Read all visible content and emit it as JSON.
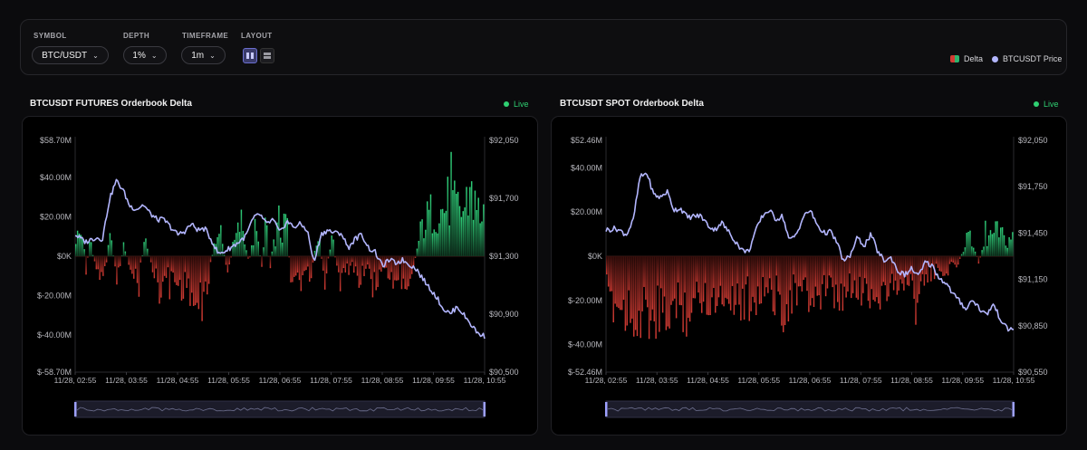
{
  "controls": {
    "symbol": {
      "label": "SYMBOL",
      "value": "BTC/USDT"
    },
    "depth": {
      "label": "DEPTH",
      "value": "1%"
    },
    "timeframe": {
      "label": "TIMEFRAME",
      "value": "1m"
    },
    "layout": {
      "label": "LAYOUT",
      "selected": "side-by-side",
      "options": [
        "side-by-side",
        "stacked"
      ]
    }
  },
  "legend": {
    "delta_label": "Delta",
    "price_label": "BTCUSDT Price"
  },
  "colors": {
    "positive": "#2fb36e",
    "negative": "#d23b33",
    "price": "#b3b6ff",
    "live": "#2fd072",
    "accent": "#8a8eea"
  },
  "charts": [
    {
      "title": "BTCUSDT FUTURES Orderbook Delta",
      "status": "Live"
    },
    {
      "title": "BTCUSDT SPOT Orderbook Delta",
      "status": "Live"
    }
  ],
  "chart_data": [
    {
      "type": "bar",
      "title": "BTCUSDT FUTURES Orderbook Delta",
      "x_ticks": [
        "11/28, 02:55",
        "11/28, 03:55",
        "11/28, 04:55",
        "11/28, 05:55",
        "11/28, 06:55",
        "11/28, 07:55",
        "11/28, 08:55",
        "11/28, 09:55",
        "11/28, 10:55"
      ],
      "y_left_ticks": [
        "$58.70M",
        "$40.00M",
        "$20.00M",
        "$0K",
        "$-20.00M",
        "$-40.00M",
        "$-58.70M"
      ],
      "y_left_values": [
        58.7,
        40,
        20,
        0,
        -20,
        -40,
        -58.7
      ],
      "y_left_range": [
        -58.7,
        58.7
      ],
      "y_right_ticks": [
        "$92,050",
        "$91,700",
        "$91,300",
        "$90,900",
        "$90,500"
      ],
      "y_right_range": [
        90500,
        92050
      ],
      "series": [
        {
          "name": "Delta",
          "type": "bar",
          "anchors": [
            [
              0,
              12
            ],
            [
              2,
              15
            ],
            [
              3,
              -10
            ],
            [
              4,
              10
            ],
            [
              6,
              -8
            ],
            [
              8,
              -14
            ],
            [
              10,
              12
            ],
            [
              12,
              -14
            ],
            [
              14,
              8
            ],
            [
              16,
              -12
            ],
            [
              18,
              -15
            ],
            [
              20,
              10
            ],
            [
              22,
              -6
            ],
            [
              24,
              -20
            ],
            [
              26,
              -14
            ],
            [
              28,
              -12
            ],
            [
              30,
              -20
            ],
            [
              32,
              -16
            ],
            [
              34,
              -24
            ],
            [
              36,
              -38
            ],
            [
              38,
              -18
            ],
            [
              40,
              8
            ],
            [
              42,
              12
            ],
            [
              44,
              -10
            ],
            [
              46,
              10
            ],
            [
              48,
              22
            ],
            [
              50,
              -5
            ],
            [
              52,
              18
            ],
            [
              54,
              -8
            ],
            [
              55,
              30
            ],
            [
              56,
              -8
            ],
            [
              58,
              16
            ],
            [
              60,
              14
            ],
            [
              61,
              28
            ],
            [
              62,
              -12
            ],
            [
              64,
              -20
            ],
            [
              66,
              -12
            ],
            [
              68,
              -16
            ],
            [
              70,
              20
            ],
            [
              72,
              -22
            ],
            [
              74,
              16
            ],
            [
              76,
              -16
            ],
            [
              78,
              -10
            ],
            [
              80,
              -6
            ],
            [
              82,
              -14
            ],
            [
              84,
              -6
            ],
            [
              86,
              -20
            ],
            [
              88,
              -10
            ],
            [
              90,
              -10
            ],
            [
              92,
              -16
            ],
            [
              94,
              -10
            ],
            [
              96,
              -16
            ],
            [
              98,
              -4
            ],
            [
              100,
              18
            ],
            [
              102,
              25
            ],
            [
              104,
              30
            ],
            [
              106,
              28
            ],
            [
              108,
              35
            ],
            [
              110,
              30
            ],
            [
              112,
              28
            ],
            [
              114,
              40
            ],
            [
              116,
              28
            ],
            [
              118,
              30
            ]
          ]
        },
        {
          "name": "BTCUSDT Price",
          "type": "line",
          "anchors": [
            [
              0,
              91420
            ],
            [
              3,
              91370
            ],
            [
              6,
              91400
            ],
            [
              8,
              91390
            ],
            [
              10,
              91650
            ],
            [
              12,
              91780
            ],
            [
              14,
              91720
            ],
            [
              16,
              91610
            ],
            [
              18,
              91590
            ],
            [
              20,
              91620
            ],
            [
              22,
              91560
            ],
            [
              24,
              91520
            ],
            [
              26,
              91520
            ],
            [
              28,
              91470
            ],
            [
              30,
              91420
            ],
            [
              32,
              91440
            ],
            [
              34,
              91490
            ],
            [
              36,
              91450
            ],
            [
              38,
              91460
            ],
            [
              40,
              91380
            ],
            [
              42,
              91290
            ],
            [
              44,
              91310
            ],
            [
              46,
              91340
            ],
            [
              48,
              91370
            ],
            [
              50,
              91410
            ],
            [
              52,
              91520
            ],
            [
              54,
              91560
            ],
            [
              56,
              91490
            ],
            [
              58,
              91520
            ],
            [
              60,
              91430
            ],
            [
              62,
              91510
            ],
            [
              64,
              91470
            ],
            [
              66,
              91490
            ],
            [
              68,
              91450
            ],
            [
              70,
              91230
            ],
            [
              72,
              91420
            ],
            [
              74,
              91450
            ],
            [
              76,
              91430
            ],
            [
              78,
              91430
            ],
            [
              80,
              91330
            ],
            [
              82,
              91390
            ],
            [
              84,
              91420
            ],
            [
              86,
              91330
            ],
            [
              88,
              91300
            ],
            [
              90,
              91210
            ],
            [
              92,
              91250
            ],
            [
              94,
              91230
            ],
            [
              96,
              91250
            ],
            [
              98,
              91220
            ],
            [
              100,
              91190
            ],
            [
              102,
              91120
            ],
            [
              104,
              91060
            ],
            [
              106,
              91000
            ],
            [
              108,
              90920
            ],
            [
              110,
              90890
            ],
            [
              112,
              90940
            ],
            [
              114,
              90880
            ],
            [
              116,
              90820
            ],
            [
              118,
              90760
            ],
            [
              120,
              90740
            ]
          ]
        }
      ]
    },
    {
      "type": "bar",
      "title": "BTCUSDT SPOT Orderbook Delta",
      "x_ticks": [
        "11/28, 02:55",
        "11/28, 03:55",
        "11/28, 04:55",
        "11/28, 05:55",
        "11/28, 06:55",
        "11/28, 07:55",
        "11/28, 08:55",
        "11/28, 09:55",
        "11/28, 10:55"
      ],
      "y_left_ticks": [
        "$52.46M",
        "$40.00M",
        "$20.00M",
        "$0K",
        "$-20.00M",
        "$-40.00M",
        "$-52.46M"
      ],
      "y_left_values": [
        52.46,
        40,
        20,
        0,
        -20,
        -40,
        -52.46
      ],
      "y_left_range": [
        -52.46,
        52.46
      ],
      "y_right_ticks": [
        "$92,050",
        "$91,750",
        "$91,450",
        "$91,150",
        "$90,850",
        "$90,550"
      ],
      "y_right_range": [
        90550,
        92050
      ],
      "series": [
        {
          "name": "Delta",
          "type": "bar",
          "anchors": [
            [
              0,
              -22
            ],
            [
              4,
              -28
            ],
            [
              8,
              -30
            ],
            [
              12,
              -32
            ],
            [
              16,
              -38
            ],
            [
              20,
              -26
            ],
            [
              24,
              -30
            ],
            [
              28,
              -22
            ],
            [
              32,
              -24
            ],
            [
              36,
              -20
            ],
            [
              40,
              -26
            ],
            [
              44,
              -22
            ],
            [
              48,
              -18
            ],
            [
              52,
              -28
            ],
            [
              56,
              -20
            ],
            [
              60,
              -24
            ],
            [
              64,
              -18
            ],
            [
              68,
              -26
            ],
            [
              72,
              -20
            ],
            [
              76,
              -18
            ],
            [
              80,
              -22
            ],
            [
              84,
              -16
            ],
            [
              88,
              -14
            ],
            [
              92,
              -18
            ],
            [
              96,
              -10
            ],
            [
              100,
              -8
            ],
            [
              104,
              -4
            ],
            [
              106,
              8
            ],
            [
              108,
              10
            ],
            [
              110,
              -4
            ],
            [
              112,
              10
            ],
            [
              114,
              12
            ],
            [
              116,
              14
            ],
            [
              118,
              8
            ],
            [
              120,
              12
            ]
          ]
        },
        {
          "name": "BTCUSDT Price",
          "type": "line",
          "anchors": [
            [
              0,
              91470
            ],
            [
              3,
              91480
            ],
            [
              6,
              91440
            ],
            [
              8,
              91530
            ],
            [
              10,
              91810
            ],
            [
              12,
              91840
            ],
            [
              14,
              91700
            ],
            [
              16,
              91680
            ],
            [
              18,
              91720
            ],
            [
              20,
              91600
            ],
            [
              22,
              91610
            ],
            [
              24,
              91550
            ],
            [
              26,
              91560
            ],
            [
              28,
              91560
            ],
            [
              30,
              91500
            ],
            [
              32,
              91470
            ],
            [
              34,
              91520
            ],
            [
              36,
              91460
            ],
            [
              38,
              91400
            ],
            [
              40,
              91340
            ],
            [
              42,
              91330
            ],
            [
              44,
              91460
            ],
            [
              46,
              91560
            ],
            [
              48,
              91600
            ],
            [
              50,
              91540
            ],
            [
              52,
              91560
            ],
            [
              54,
              91400
            ],
            [
              56,
              91440
            ],
            [
              58,
              91550
            ],
            [
              60,
              91600
            ],
            [
              62,
              91510
            ],
            [
              64,
              91450
            ],
            [
              66,
              91460
            ],
            [
              68,
              91390
            ],
            [
              70,
              91260
            ],
            [
              72,
              91310
            ],
            [
              74,
              91420
            ],
            [
              76,
              91370
            ],
            [
              78,
              91440
            ],
            [
              80,
              91330
            ],
            [
              82,
              91270
            ],
            [
              84,
              91290
            ],
            [
              86,
              91200
            ],
            [
              88,
              91180
            ],
            [
              90,
              91220
            ],
            [
              92,
              91170
            ],
            [
              94,
              91260
            ],
            [
              96,
              91240
            ],
            [
              98,
              91160
            ],
            [
              100,
              91130
            ],
            [
              102,
              91060
            ],
            [
              104,
              91010
            ],
            [
              106,
              90960
            ],
            [
              108,
              91020
            ],
            [
              110,
              90960
            ],
            [
              112,
              90920
            ],
            [
              114,
              90990
            ],
            [
              116,
              90900
            ],
            [
              118,
              90830
            ],
            [
              120,
              90830
            ]
          ]
        }
      ]
    }
  ]
}
